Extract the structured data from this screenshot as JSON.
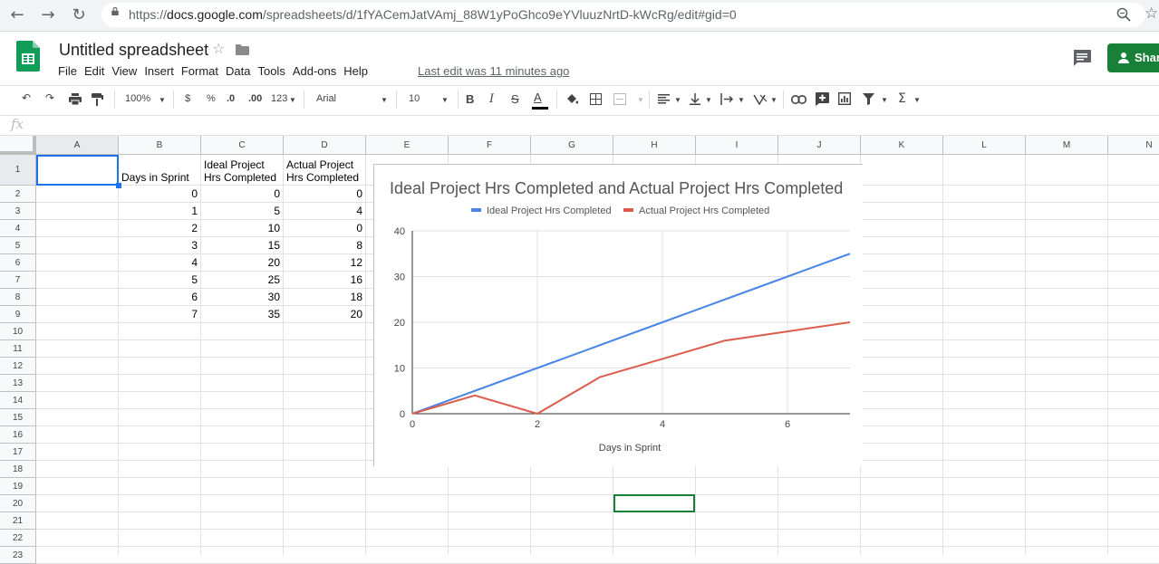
{
  "browser": {
    "url_prefix": "https://",
    "url_host": "docs.google.com",
    "url_path": "/spreadsheets/d/1fYACemJatVAmj_88W1yPoGhco9eYVluuzNrtD-kWcRg/edit#gid=0"
  },
  "doc": {
    "title": "Untitled spreadsheet",
    "menus": [
      "File",
      "Edit",
      "View",
      "Insert",
      "Format",
      "Data",
      "Tools",
      "Add-ons",
      "Help"
    ],
    "last_edit": "Last edit was 11 minutes ago",
    "share_label": "Shar"
  },
  "toolbar": {
    "zoom": "100%",
    "currency": "$",
    "percent": "%",
    "dec_less": ".0",
    "dec_more": ".00",
    "format_more": "123",
    "font": "Arial",
    "font_size": "10",
    "bold": "B",
    "italic": "I",
    "strike": "S",
    "text_color": "A",
    "sum": "Σ"
  },
  "formula_bar": {
    "fx": "fx"
  },
  "sheet": {
    "columns": [
      "A",
      "B",
      "C",
      "D",
      "E",
      "F",
      "G",
      "H",
      "I",
      "J",
      "K",
      "L",
      "M",
      "N"
    ],
    "rows": [
      "1",
      "2",
      "3",
      "4",
      "5",
      "6",
      "7",
      "8",
      "9",
      "10",
      "11",
      "12",
      "13",
      "14",
      "15",
      "16",
      "17",
      "18",
      "19",
      "20",
      "21",
      "22",
      "23"
    ],
    "header_b": "Days in Sprint",
    "header_c1": "Ideal Project",
    "header_c2": "Hrs Completed",
    "header_d1": "Actual Project",
    "header_d2": "Hrs Completed",
    "days": [
      "0",
      "1",
      "2",
      "3",
      "4",
      "5",
      "6",
      "7"
    ],
    "ideal": [
      "0",
      "5",
      "10",
      "15",
      "20",
      "25",
      "30",
      "35"
    ],
    "actual": [
      "0",
      "4",
      "0",
      "8",
      "12",
      "16",
      "18",
      "20"
    ]
  },
  "colors": {
    "ideal": "#4a86e8",
    "actual": "#dc5c4d",
    "selection": "#1a73e8",
    "active_cell": "#188038"
  },
  "chart_data": {
    "type": "line",
    "title": "Ideal Project Hrs Completed and Actual Project Hrs Completed",
    "xlabel": "Days in Sprint",
    "ylabel": "",
    "x": [
      0,
      1,
      2,
      3,
      4,
      5,
      6,
      7
    ],
    "series": [
      {
        "name": "Ideal Project Hrs Completed",
        "values": [
          0,
          5,
          10,
          15,
          20,
          25,
          30,
          35
        ],
        "color": "#4a86e8"
      },
      {
        "name": "Actual Project Hrs Completed",
        "values": [
          0,
          4,
          0,
          8,
          12,
          16,
          18,
          20
        ],
        "color": "#dc5c4d"
      }
    ],
    "xlim": [
      0,
      7
    ],
    "ylim": [
      0,
      40
    ],
    "xticks": [
      0,
      2,
      4,
      6
    ],
    "yticks": [
      0,
      10,
      20,
      30,
      40
    ],
    "legend": "top",
    "grid": true
  }
}
